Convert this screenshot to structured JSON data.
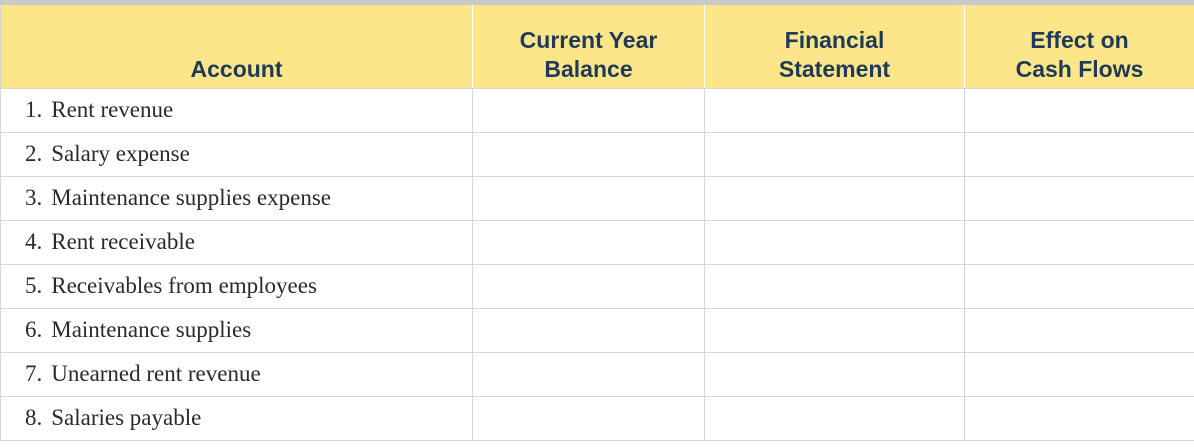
{
  "table": {
    "header": {
      "account": "Account",
      "balance": [
        "Current Year",
        "Balance"
      ],
      "statement": [
        "Financial",
        "Statement"
      ],
      "effect": [
        "Effect on",
        "Cash Flows"
      ]
    },
    "rows": [
      {
        "num": "1.",
        "account": "Rent revenue",
        "balance": "",
        "statement": "",
        "effect": ""
      },
      {
        "num": "2.",
        "account": "Salary expense",
        "balance": "",
        "statement": "",
        "effect": ""
      },
      {
        "num": "3.",
        "account": "Maintenance supplies expense",
        "balance": "",
        "statement": "",
        "effect": ""
      },
      {
        "num": "4.",
        "account": "Rent receivable",
        "balance": "",
        "statement": "",
        "effect": ""
      },
      {
        "num": "5.",
        "account": "Receivables from employees",
        "balance": "",
        "statement": "",
        "effect": ""
      },
      {
        "num": "6.",
        "account": "Maintenance supplies",
        "balance": "",
        "statement": "",
        "effect": ""
      },
      {
        "num": "7.",
        "account": "Unearned rent revenue",
        "balance": "",
        "statement": "",
        "effect": ""
      },
      {
        "num": "8.",
        "account": "Salaries payable",
        "balance": "",
        "statement": "",
        "effect": ""
      }
    ]
  },
  "colors": {
    "header_fill": "#fde68a",
    "header_text": "#1f3a57",
    "grid_line": "#d4d4d4"
  }
}
